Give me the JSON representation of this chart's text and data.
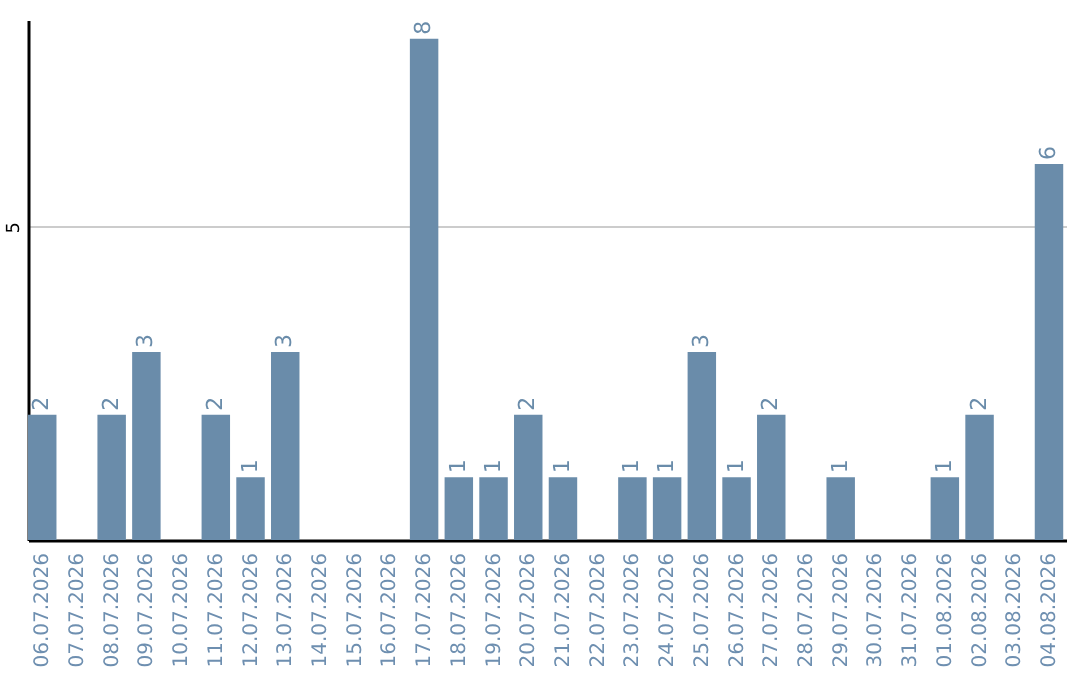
{
  "chart_data": {
    "type": "bar",
    "categories": [
      "06.07.2026",
      "07.07.2026",
      "08.07.2026",
      "09.07.2026",
      "10.07.2026",
      "11.07.2026",
      "12.07.2026",
      "13.07.2026",
      "14.07.2026",
      "15.07.2026",
      "16.07.2026",
      "17.07.2026",
      "18.07.2026",
      "19.07.2026",
      "20.07.2026",
      "21.07.2026",
      "22.07.2026",
      "23.07.2026",
      "24.07.2026",
      "25.07.2026",
      "26.07.2026",
      "27.07.2026",
      "28.07.2026",
      "29.07.2026",
      "30.07.2026",
      "31.07.2026",
      "01.08.2026",
      "02.08.2026",
      "03.08.2026",
      "04.08.2026"
    ],
    "values": [
      2,
      0,
      2,
      3,
      0,
      2,
      1,
      3,
      0,
      0,
      0,
      8,
      1,
      1,
      2,
      1,
      0,
      1,
      1,
      3,
      1,
      2,
      0,
      1,
      0,
      0,
      1,
      2,
      0,
      6
    ],
    "value_labels": [
      "2",
      null,
      "2",
      "3",
      null,
      "2",
      "1",
      "3",
      null,
      null,
      null,
      "8",
      "1",
      "1",
      "2",
      "1",
      null,
      "1",
      "1",
      "3",
      "1",
      "2",
      null,
      "1",
      null,
      null,
      "1",
      "2",
      null,
      "6"
    ],
    "color": "#6a8caa",
    "ylim": [
      0,
      8.3
    ],
    "yticks": [
      5
    ],
    "grid": "y"
  }
}
